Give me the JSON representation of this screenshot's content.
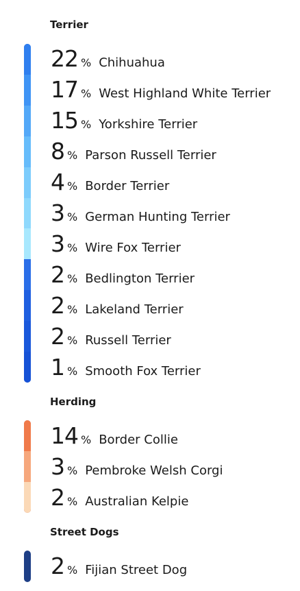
{
  "groups": [
    {
      "title": "Terrier",
      "bar_colors": [
        "#2f7fef",
        "#3f94f5",
        "#53a8f8",
        "#66bcfb",
        "#7cccfc",
        "#8fd9fd",
        "#a8e8fe",
        "#2a6ee8",
        "#1f5fe0",
        "#1a58db",
        "#1652d6"
      ],
      "items": [
        {
          "percent": "22",
          "sign": "%",
          "breed": "Chihuahua"
        },
        {
          "percent": "17",
          "sign": "%",
          "breed": "West Highland White Terrier"
        },
        {
          "percent": "15",
          "sign": "%",
          "breed": "Yorkshire Terrier"
        },
        {
          "percent": "8",
          "sign": "%",
          "breed": "Parson Russell Terrier"
        },
        {
          "percent": "4",
          "sign": "%",
          "breed": "Border Terrier"
        },
        {
          "percent": "3",
          "sign": "%",
          "breed": "German Hunting Terrier"
        },
        {
          "percent": "3",
          "sign": "%",
          "breed": "Wire Fox Terrier"
        },
        {
          "percent": "2",
          "sign": "%",
          "breed": "Bedlington Terrier"
        },
        {
          "percent": "2",
          "sign": "%",
          "breed": "Lakeland Terrier"
        },
        {
          "percent": "2",
          "sign": "%",
          "breed": "Russell Terrier"
        },
        {
          "percent": "1",
          "sign": "%",
          "breed": "Smooth Fox Terrier"
        }
      ]
    },
    {
      "title": "Herding",
      "bar_colors": [
        "#f07a4a",
        "#f6a77c",
        "#fbd9b7"
      ],
      "bar_edge_color": "#c8441c",
      "items": [
        {
          "percent": "14",
          "sign": "%",
          "breed": "Border Collie"
        },
        {
          "percent": "3",
          "sign": "%",
          "breed": "Pembroke Welsh Corgi"
        },
        {
          "percent": "2",
          "sign": "%",
          "breed": "Australian Kelpie"
        }
      ]
    },
    {
      "title": "Street Dogs",
      "bar_colors": [
        "#1e3f86"
      ],
      "bar_edge_color": "#0f2a66",
      "items": [
        {
          "percent": "2",
          "sign": "%",
          "breed": "Fijian Street Dog"
        }
      ]
    }
  ]
}
